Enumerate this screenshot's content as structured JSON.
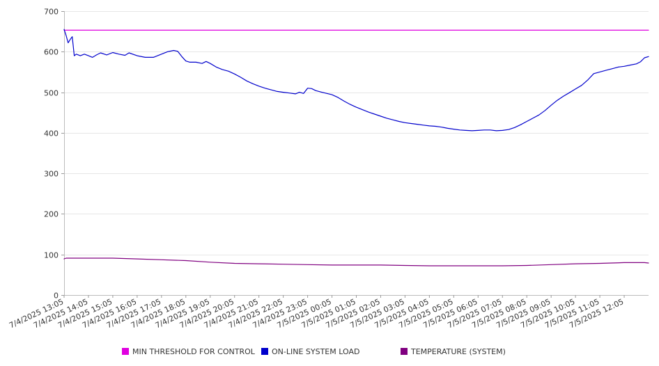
{
  "chart_data": {
    "type": "line",
    "title": "",
    "xlabel": "",
    "ylabel": "",
    "ylim": [
      0,
      700
    ],
    "y_ticks": [
      0,
      100,
      200,
      300,
      400,
      500,
      600,
      700
    ],
    "x_tick_labels": [
      "7/4/2025 13:05",
      "7/4/2025 14:05",
      "7/4/2025 15:05",
      "7/4/2025 16:05",
      "7/4/2025 17:05",
      "7/4/2025 18:05",
      "7/4/2025 19:05",
      "7/4/2025 20:05",
      "7/4/2025 21:05",
      "7/4/2025 22:05",
      "7/4/2025 23:05",
      "7/5/2025 00:05",
      "7/5/2025 01:05",
      "7/5/2025 02:05",
      "7/5/2025 03:05",
      "7/5/2025 04:05",
      "7/5/2025 05:05",
      "7/5/2025 06:05",
      "7/5/2025 07:05",
      "7/5/2025 08:05",
      "7/5/2025 09:05",
      "7/5/2025 10:05",
      "7/5/2025 11:05",
      "7/5/2025 12:05"
    ],
    "grid": "horizontal",
    "legend_position": "bottom",
    "series": [
      {
        "name": "MIN THRESHOLD FOR CONTROL",
        "color": "#e000e0",
        "points": [
          {
            "x": "7/4/2025 13:05",
            "y": 653
          },
          {
            "x": "7/5/2025 13:05",
            "y": 653
          }
        ]
      },
      {
        "name": "ON-LINE SYSTEM LOAD",
        "color": "#0000cc",
        "points": [
          {
            "x": "7/4/2025 13:05",
            "y": 655
          },
          {
            "x": "7/4/2025 13:10",
            "y": 640
          },
          {
            "x": "7/4/2025 13:15",
            "y": 622
          },
          {
            "x": "7/4/2025 13:20",
            "y": 630
          },
          {
            "x": "7/4/2025 13:25",
            "y": 637
          },
          {
            "x": "7/4/2025 13:30",
            "y": 590
          },
          {
            "x": "7/4/2025 13:35",
            "y": 594
          },
          {
            "x": "7/4/2025 13:45",
            "y": 590
          },
          {
            "x": "7/4/2025 13:55",
            "y": 594
          },
          {
            "x": "7/4/2025 14:05",
            "y": 590
          },
          {
            "x": "7/4/2025 14:15",
            "y": 586
          },
          {
            "x": "7/4/2025 14:25",
            "y": 592
          },
          {
            "x": "7/4/2025 14:35",
            "y": 597
          },
          {
            "x": "7/4/2025 14:50",
            "y": 592
          },
          {
            "x": "7/4/2025 15:05",
            "y": 598
          },
          {
            "x": "7/4/2025 15:20",
            "y": 594
          },
          {
            "x": "7/4/2025 15:35",
            "y": 591
          },
          {
            "x": "7/4/2025 15:45",
            "y": 597
          },
          {
            "x": "7/4/2025 16:05",
            "y": 590
          },
          {
            "x": "7/4/2025 16:25",
            "y": 586
          },
          {
            "x": "7/4/2025 16:45",
            "y": 586
          },
          {
            "x": "7/4/2025 17:05",
            "y": 594
          },
          {
            "x": "7/4/2025 17:20",
            "y": 600
          },
          {
            "x": "7/4/2025 17:35",
            "y": 603
          },
          {
            "x": "7/4/2025 17:45",
            "y": 601
          },
          {
            "x": "7/4/2025 17:55",
            "y": 588
          },
          {
            "x": "7/4/2025 18:05",
            "y": 577
          },
          {
            "x": "7/4/2025 18:15",
            "y": 574
          },
          {
            "x": "7/4/2025 18:30",
            "y": 574
          },
          {
            "x": "7/4/2025 18:45",
            "y": 571
          },
          {
            "x": "7/4/2025 18:55",
            "y": 576
          },
          {
            "x": "7/4/2025 19:05",
            "y": 571
          },
          {
            "x": "7/4/2025 19:20",
            "y": 562
          },
          {
            "x": "7/4/2025 19:35",
            "y": 556
          },
          {
            "x": "7/4/2025 19:50",
            "y": 552
          },
          {
            "x": "7/4/2025 20:05",
            "y": 545
          },
          {
            "x": "7/4/2025 20:20",
            "y": 537
          },
          {
            "x": "7/4/2025 20:35",
            "y": 528
          },
          {
            "x": "7/4/2025 20:50",
            "y": 521
          },
          {
            "x": "7/4/2025 21:05",
            "y": 515
          },
          {
            "x": "7/4/2025 21:20",
            "y": 510
          },
          {
            "x": "7/4/2025 21:35",
            "y": 506
          },
          {
            "x": "7/4/2025 21:50",
            "y": 502
          },
          {
            "x": "7/4/2025 22:05",
            "y": 500
          },
          {
            "x": "7/4/2025 22:20",
            "y": 498
          },
          {
            "x": "7/4/2025 22:35",
            "y": 496
          },
          {
            "x": "7/4/2025 22:45",
            "y": 500
          },
          {
            "x": "7/4/2025 22:55",
            "y": 497
          },
          {
            "x": "7/4/2025 23:05",
            "y": 510
          },
          {
            "x": "7/4/2025 23:15",
            "y": 509
          },
          {
            "x": "7/4/2025 23:25",
            "y": 504
          },
          {
            "x": "7/4/2025 23:40",
            "y": 500
          },
          {
            "x": "7/5/2025 00:05",
            "y": 494
          },
          {
            "x": "7/5/2025 00:20",
            "y": 487
          },
          {
            "x": "7/5/2025 00:35",
            "y": 478
          },
          {
            "x": "7/5/2025 00:50",
            "y": 470
          },
          {
            "x": "7/5/2025 01:05",
            "y": 463
          },
          {
            "x": "7/5/2025 01:20",
            "y": 457
          },
          {
            "x": "7/5/2025 01:35",
            "y": 451
          },
          {
            "x": "7/5/2025 01:50",
            "y": 446
          },
          {
            "x": "7/5/2025 02:05",
            "y": 441
          },
          {
            "x": "7/5/2025 02:20",
            "y": 436
          },
          {
            "x": "7/5/2025 02:35",
            "y": 432
          },
          {
            "x": "7/5/2025 02:50",
            "y": 428
          },
          {
            "x": "7/5/2025 03:05",
            "y": 425
          },
          {
            "x": "7/5/2025 03:20",
            "y": 423
          },
          {
            "x": "7/5/2025 03:35",
            "y": 421
          },
          {
            "x": "7/5/2025 03:50",
            "y": 419
          },
          {
            "x": "7/5/2025 04:05",
            "y": 417
          },
          {
            "x": "7/5/2025 04:20",
            "y": 416
          },
          {
            "x": "7/5/2025 04:35",
            "y": 414
          },
          {
            "x": "7/5/2025 04:50",
            "y": 411
          },
          {
            "x": "7/5/2025 05:05",
            "y": 409
          },
          {
            "x": "7/5/2025 05:20",
            "y": 407
          },
          {
            "x": "7/5/2025 05:35",
            "y": 406
          },
          {
            "x": "7/5/2025 05:50",
            "y": 405
          },
          {
            "x": "7/5/2025 06:05",
            "y": 406
          },
          {
            "x": "7/5/2025 06:20",
            "y": 407
          },
          {
            "x": "7/5/2025 06:35",
            "y": 407
          },
          {
            "x": "7/5/2025 06:50",
            "y": 405
          },
          {
            "x": "7/5/2025 07:05",
            "y": 406
          },
          {
            "x": "7/5/2025 07:20",
            "y": 408
          },
          {
            "x": "7/5/2025 07:35",
            "y": 413
          },
          {
            "x": "7/5/2025 07:50",
            "y": 420
          },
          {
            "x": "7/5/2025 08:05",
            "y": 428
          },
          {
            "x": "7/5/2025 08:20",
            "y": 436
          },
          {
            "x": "7/5/2025 08:35",
            "y": 444
          },
          {
            "x": "7/5/2025 08:50",
            "y": 455
          },
          {
            "x": "7/5/2025 09:05",
            "y": 468
          },
          {
            "x": "7/5/2025 09:20",
            "y": 480
          },
          {
            "x": "7/5/2025 09:35",
            "y": 490
          },
          {
            "x": "7/5/2025 09:50",
            "y": 499
          },
          {
            "x": "7/5/2025 10:05",
            "y": 508
          },
          {
            "x": "7/5/2025 10:20",
            "y": 517
          },
          {
            "x": "7/5/2025 10:35",
            "y": 530
          },
          {
            "x": "7/5/2025 10:50",
            "y": 546
          },
          {
            "x": "7/5/2025 11:05",
            "y": 550
          },
          {
            "x": "7/5/2025 11:20",
            "y": 554
          },
          {
            "x": "7/5/2025 11:35",
            "y": 558
          },
          {
            "x": "7/5/2025 11:50",
            "y": 562
          },
          {
            "x": "7/5/2025 12:05",
            "y": 564
          },
          {
            "x": "7/5/2025 12:20",
            "y": 567
          },
          {
            "x": "7/5/2025 12:35",
            "y": 570
          },
          {
            "x": "7/5/2025 12:45",
            "y": 575
          },
          {
            "x": "7/5/2025 12:55",
            "y": 585
          },
          {
            "x": "7/5/2025 13:05",
            "y": 588
          }
        ]
      },
      {
        "name": "TEMPERATURE (SYSTEM)",
        "color": "#800080",
        "points": [
          {
            "x": "7/4/2025 13:05",
            "y": 89
          },
          {
            "x": "7/4/2025 13:10",
            "y": 91
          },
          {
            "x": "7/4/2025 14:05",
            "y": 91
          },
          {
            "x": "7/4/2025 15:05",
            "y": 91
          },
          {
            "x": "7/4/2025 16:05",
            "y": 89
          },
          {
            "x": "7/4/2025 17:05",
            "y": 87
          },
          {
            "x": "7/4/2025 18:05",
            "y": 85
          },
          {
            "x": "7/4/2025 19:05",
            "y": 81
          },
          {
            "x": "7/4/2025 20:05",
            "y": 78
          },
          {
            "x": "7/4/2025 21:05",
            "y": 77
          },
          {
            "x": "7/4/2025 22:05",
            "y": 76
          },
          {
            "x": "7/4/2025 23:05",
            "y": 75
          },
          {
            "x": "7/5/2025 00:05",
            "y": 74
          },
          {
            "x": "7/5/2025 01:05",
            "y": 74
          },
          {
            "x": "7/5/2025 02:05",
            "y": 74
          },
          {
            "x": "7/5/2025 03:05",
            "y": 73
          },
          {
            "x": "7/5/2025 04:05",
            "y": 72
          },
          {
            "x": "7/5/2025 05:05",
            "y": 72
          },
          {
            "x": "7/5/2025 06:05",
            "y": 72
          },
          {
            "x": "7/5/2025 07:05",
            "y": 72
          },
          {
            "x": "7/5/2025 08:05",
            "y": 73
          },
          {
            "x": "7/5/2025 09:05",
            "y": 75
          },
          {
            "x": "7/5/2025 10:05",
            "y": 77
          },
          {
            "x": "7/5/2025 11:05",
            "y": 78
          },
          {
            "x": "7/5/2025 12:05",
            "y": 80
          },
          {
            "x": "7/5/2025 12:55",
            "y": 80
          },
          {
            "x": "7/5/2025 13:05",
            "y": 79
          }
        ]
      }
    ]
  }
}
